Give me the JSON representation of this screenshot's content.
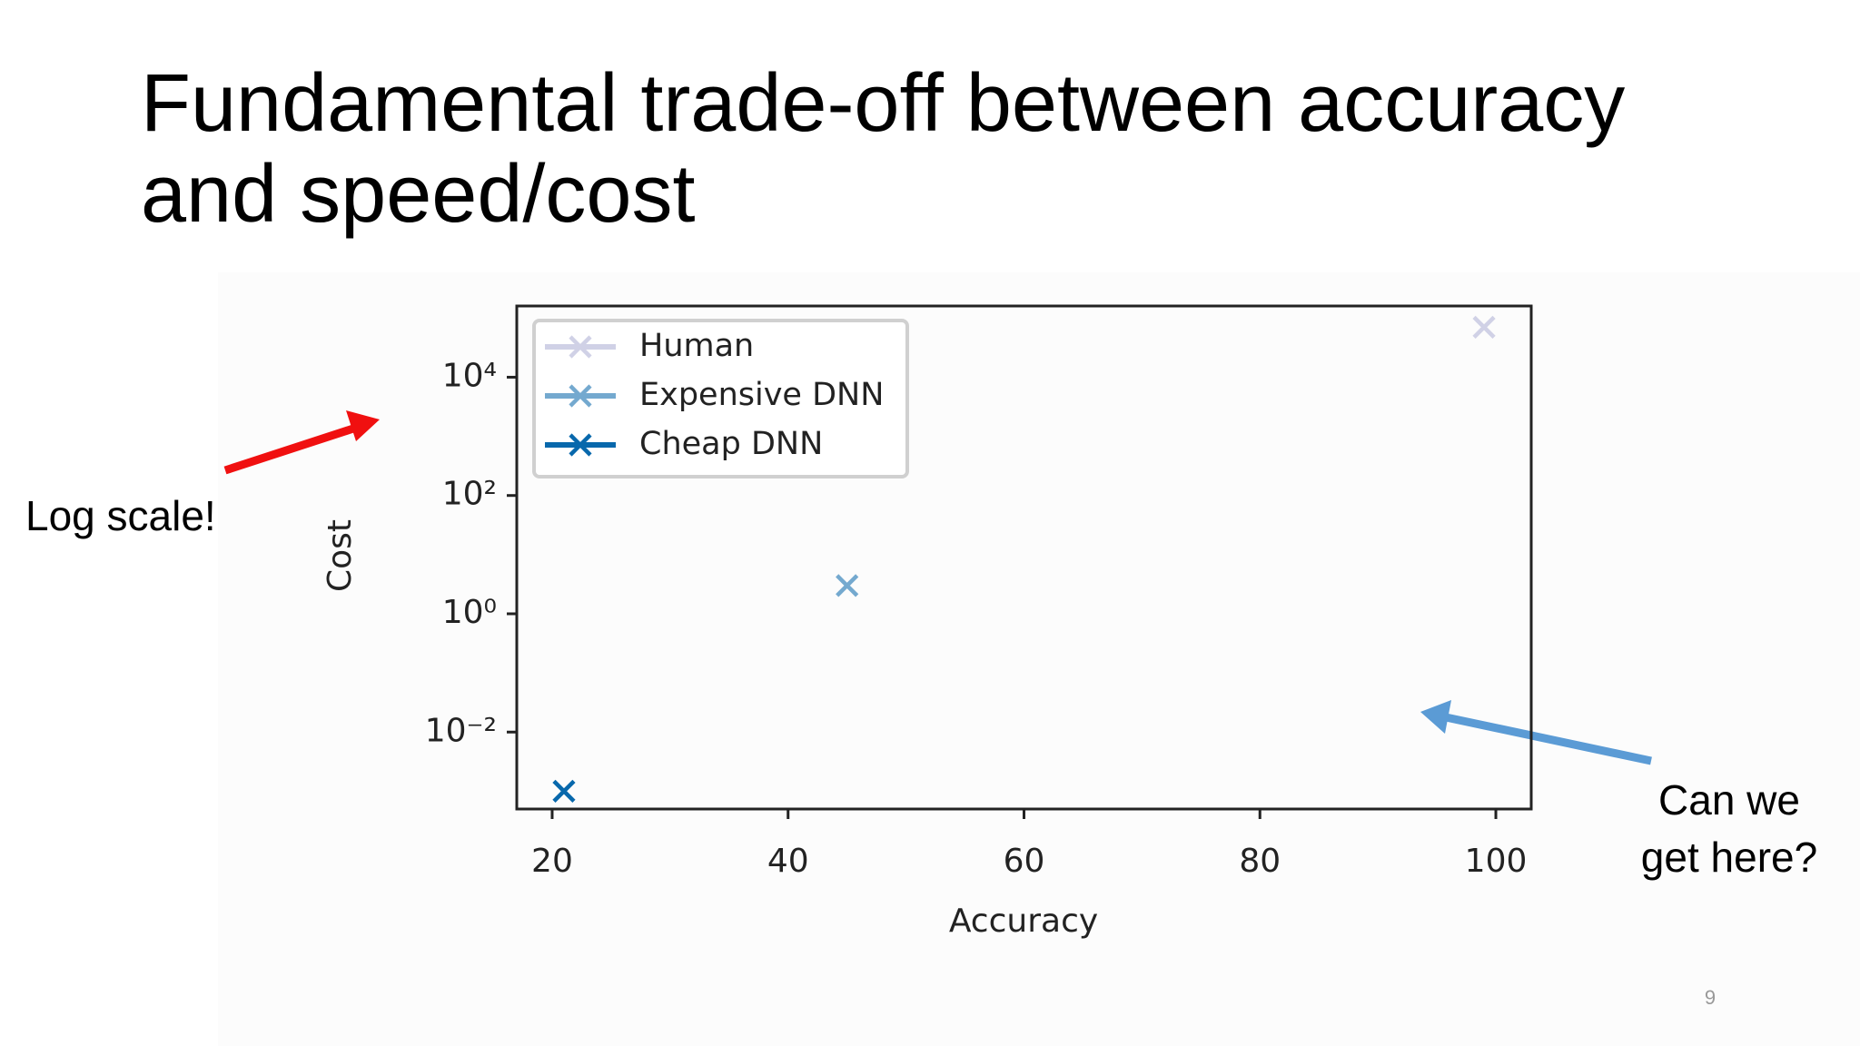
{
  "chart_data": {
    "type": "scatter",
    "title": [
      "Fundamental trade-off between accuracy",
      "and speed/cost"
    ],
    "x_label": "Accuracy",
    "y_label": "Cost",
    "log_y": true,
    "legend": "upper left",
    "xlim": [
      17,
      103
    ],
    "xticks": [
      20,
      40,
      60,
      80,
      100
    ],
    "ylim": [
      0.0005,
      160000
    ],
    "yticks": [
      {
        "value": 0.01,
        "label": "10⁻²"
      },
      {
        "value": 1,
        "label": "10⁰"
      },
      {
        "value": 100,
        "label": "10²"
      },
      {
        "value": 10000,
        "label": "10⁴"
      }
    ],
    "series": [
      {
        "name": "Human",
        "color": "#d0d1e6",
        "x": [
          99
        ],
        "values": [
          70000
        ]
      },
      {
        "name": "Expensive DNN",
        "color": "#74a9cf",
        "x": [
          45
        ],
        "values": [
          3
        ]
      },
      {
        "name": "Cheap DNN",
        "color": "#0868ac",
        "x": [
          21
        ],
        "values": [
          0.001
        ]
      }
    ],
    "annotations": [
      "Log scale!",
      [
        "Can we",
        "get here?"
      ]
    ],
    "page_number": "9"
  }
}
